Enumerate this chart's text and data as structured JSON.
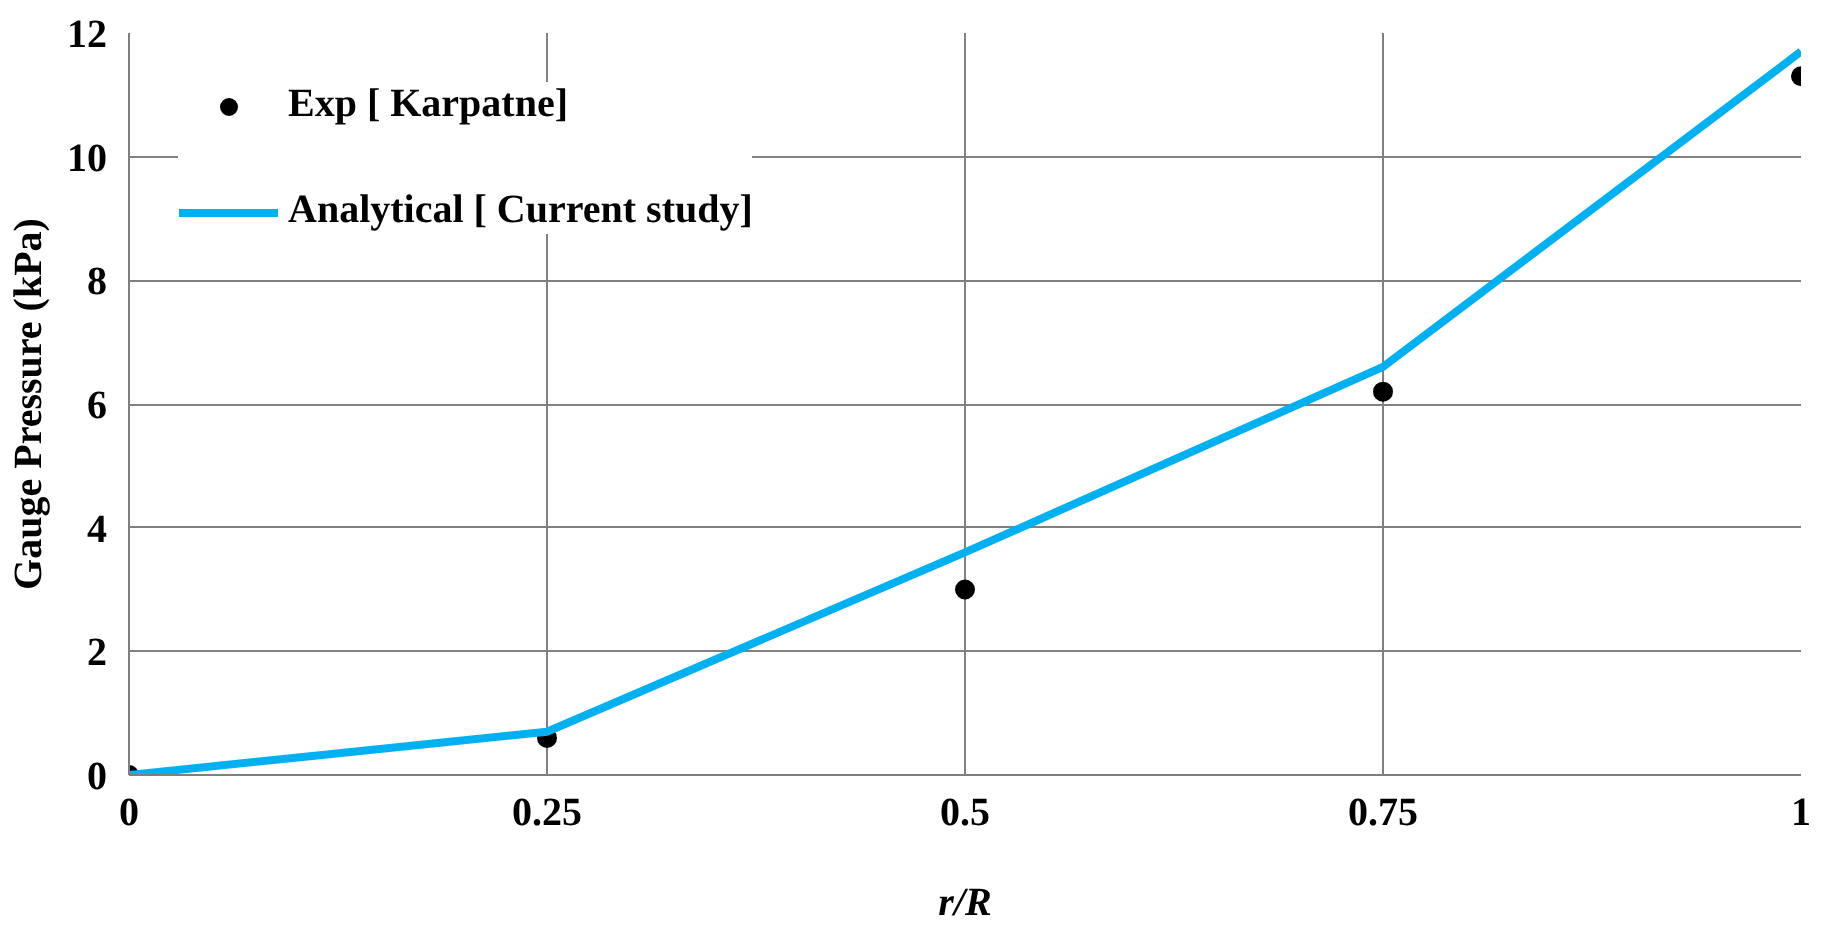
{
  "chart_data": {
    "type": "scatter",
    "xlabel": "r/R",
    "ylabel": "Gauge Pressure (kPa)",
    "x": [
      0,
      0.25,
      0.5,
      0.75,
      1
    ],
    "series": [
      {
        "name": "Exp [ Karpatne]",
        "color": "#000000",
        "marker": "circle",
        "values": [
          0,
          0.6,
          3.0,
          6.2,
          11.3
        ]
      },
      {
        "name": "Analytical [ Current study]",
        "type": "line",
        "color": "#00b0f0",
        "marker": "none",
        "line_style": "solid",
        "values": [
          0,
          0.7,
          3.6,
          6.6,
          11.7
        ]
      }
    ],
    "xlim": [
      0,
      1
    ],
    "xticks": [
      0,
      0.25,
      0.5,
      0.75,
      1
    ],
    "ylim": [
      0,
      12
    ],
    "yticks": [
      0,
      2,
      4,
      6,
      8,
      10,
      12
    ],
    "grid": true,
    "legend": "top left"
  }
}
